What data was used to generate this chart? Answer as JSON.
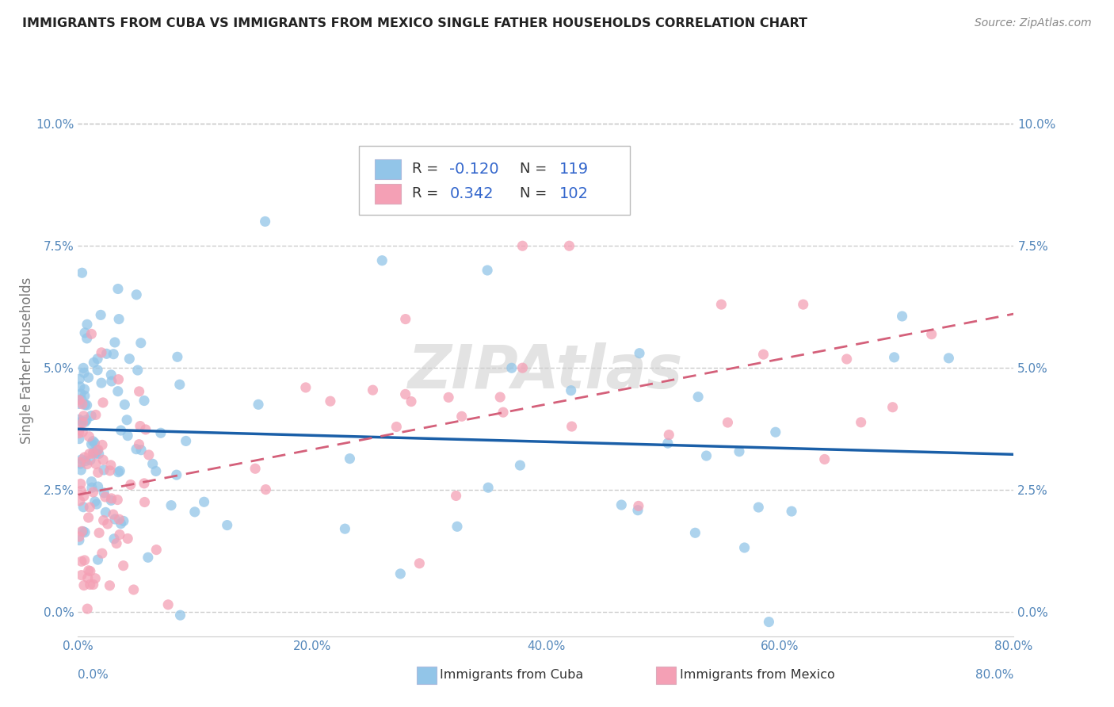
{
  "title": "IMMIGRANTS FROM CUBA VS IMMIGRANTS FROM MEXICO SINGLE FATHER HOUSEHOLDS CORRELATION CHART",
  "source_text": "Source: ZipAtlas.com",
  "ylabel": "Single Father Households",
  "xlabel_cuba": "Immigrants from Cuba",
  "xlabel_mexico": "Immigrants from Mexico",
  "watermark": "ZIPAtlas",
  "legend_cuba_R": "-0.120",
  "legend_cuba_N": "119",
  "legend_mexico_R": "0.342",
  "legend_mexico_N": "102",
  "xlim": [
    0.0,
    0.8
  ],
  "ylim": [
    -0.005,
    0.108
  ],
  "yticks": [
    0.0,
    0.025,
    0.05,
    0.075,
    0.1
  ],
  "xticks": [
    0.0,
    0.2,
    0.4,
    0.6,
    0.8
  ],
  "cuba_color": "#92C5E8",
  "mexico_color": "#F4A0B5",
  "cuba_line_color": "#1A5FA8",
  "mexico_line_color": "#D4607A",
  "bg_color": "#FFFFFF",
  "grid_color": "#CCCCCC",
  "title_color": "#222222",
  "axis_label_color": "#5588BB",
  "tick_color": "#5588BB",
  "watermark_color": "#CCCCCC",
  "legend_text_color": "#333333",
  "legend_value_color": "#3366CC",
  "source_color": "#888888"
}
